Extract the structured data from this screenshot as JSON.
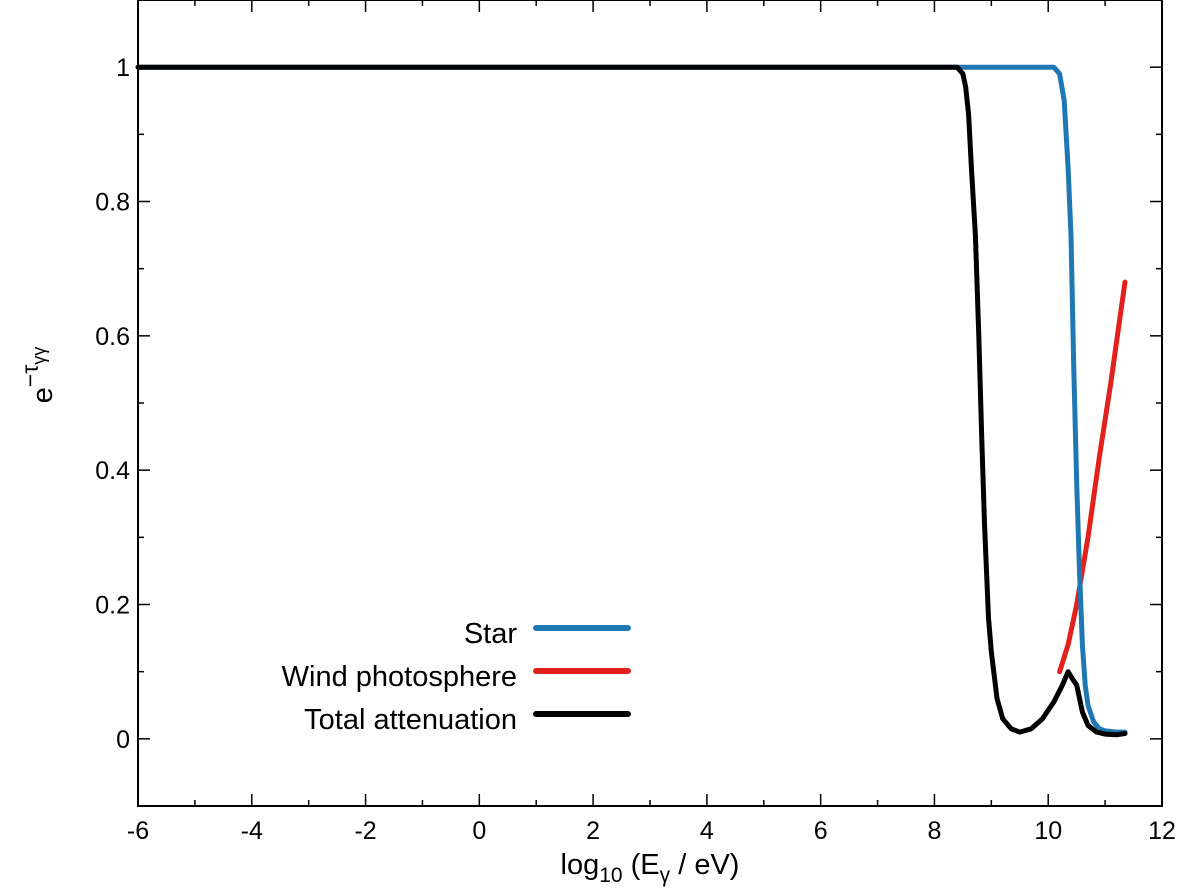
{
  "chart_data": {
    "type": "line",
    "xlabel": "log10 (Eγ / eV)",
    "ylabel": "e^-τγγ",
    "xlim": [
      -6,
      12
    ],
    "ylim": [
      -0.1,
      1.1
    ],
    "xticks": [
      -6,
      -4,
      -2,
      0,
      2,
      4,
      6,
      8,
      10,
      12
    ],
    "xtick_labels": [
      "-6",
      "-4",
      "-2",
      "0",
      "2",
      "4",
      "6",
      "8",
      "10",
      "12"
    ],
    "yticks": [
      0,
      0.2,
      0.4,
      0.6,
      0.8,
      1
    ],
    "ytick_labels": [
      "0",
      "0.2",
      "0.4",
      "0.6",
      "0.8",
      "1"
    ],
    "grid": false,
    "legend_position": "bottom-left",
    "series": [
      {
        "name": "Star",
        "color": "#1f77b4",
        "points": [
          [
            -6,
            1
          ],
          [
            10.1,
            1
          ],
          [
            10.2,
            0.99
          ],
          [
            10.28,
            0.95
          ],
          [
            10.35,
            0.85
          ],
          [
            10.4,
            0.75
          ],
          [
            10.45,
            0.55
          ],
          [
            10.5,
            0.38
          ],
          [
            10.55,
            0.25
          ],
          [
            10.6,
            0.14
          ],
          [
            10.65,
            0.08
          ],
          [
            10.7,
            0.05
          ],
          [
            10.8,
            0.025
          ],
          [
            10.9,
            0.015
          ],
          [
            11.0,
            0.012
          ],
          [
            11.2,
            0.01
          ],
          [
            11.35,
            0.01
          ]
        ]
      },
      {
        "name": "Wind photosphere",
        "color": "#e3211c",
        "points": [
          [
            10.2,
            0.1
          ],
          [
            10.35,
            0.14
          ],
          [
            10.5,
            0.2
          ],
          [
            10.7,
            0.3
          ],
          [
            10.9,
            0.42
          ],
          [
            11.1,
            0.53
          ],
          [
            11.25,
            0.62
          ],
          [
            11.35,
            0.68
          ]
        ]
      },
      {
        "name": "Total attenuation",
        "color": "#000000",
        "points": [
          [
            -6,
            1
          ],
          [
            8.4,
            1
          ],
          [
            8.5,
            0.99
          ],
          [
            8.55,
            0.97
          ],
          [
            8.6,
            0.93
          ],
          [
            8.65,
            0.85
          ],
          [
            8.72,
            0.75
          ],
          [
            8.78,
            0.6
          ],
          [
            8.83,
            0.45
          ],
          [
            8.88,
            0.32
          ],
          [
            8.95,
            0.18
          ],
          [
            9.0,
            0.13
          ],
          [
            9.1,
            0.06
          ],
          [
            9.2,
            0.03
          ],
          [
            9.35,
            0.015
          ],
          [
            9.5,
            0.01
          ],
          [
            9.7,
            0.015
          ],
          [
            9.9,
            0.03
          ],
          [
            10.1,
            0.055
          ],
          [
            10.25,
            0.08
          ],
          [
            10.35,
            0.1
          ],
          [
            10.42,
            0.09
          ],
          [
            10.5,
            0.08
          ],
          [
            10.6,
            0.04
          ],
          [
            10.7,
            0.02
          ],
          [
            10.85,
            0.01
          ],
          [
            11.0,
            0.007
          ],
          [
            11.2,
            0.006
          ],
          [
            11.35,
            0.008
          ]
        ]
      }
    ]
  }
}
